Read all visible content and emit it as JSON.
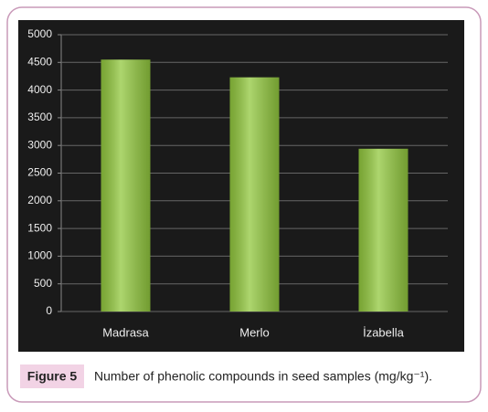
{
  "chart_data": {
    "type": "bar",
    "categories": [
      "Madrasa",
      "Merlo",
      "İzabella"
    ],
    "values": [
      4550,
      4230,
      2940
    ],
    "color": "#92c83e",
    "ylim": [
      0,
      5000
    ],
    "yticks": [
      0,
      500,
      1000,
      1500,
      2000,
      2500,
      3000,
      3500,
      4000,
      4500,
      5000
    ],
    "grid": true
  },
  "figure": {
    "label": "Figure 5",
    "caption": "Number of phenolic compounds in seed samples (mg/kg⁻¹)."
  }
}
